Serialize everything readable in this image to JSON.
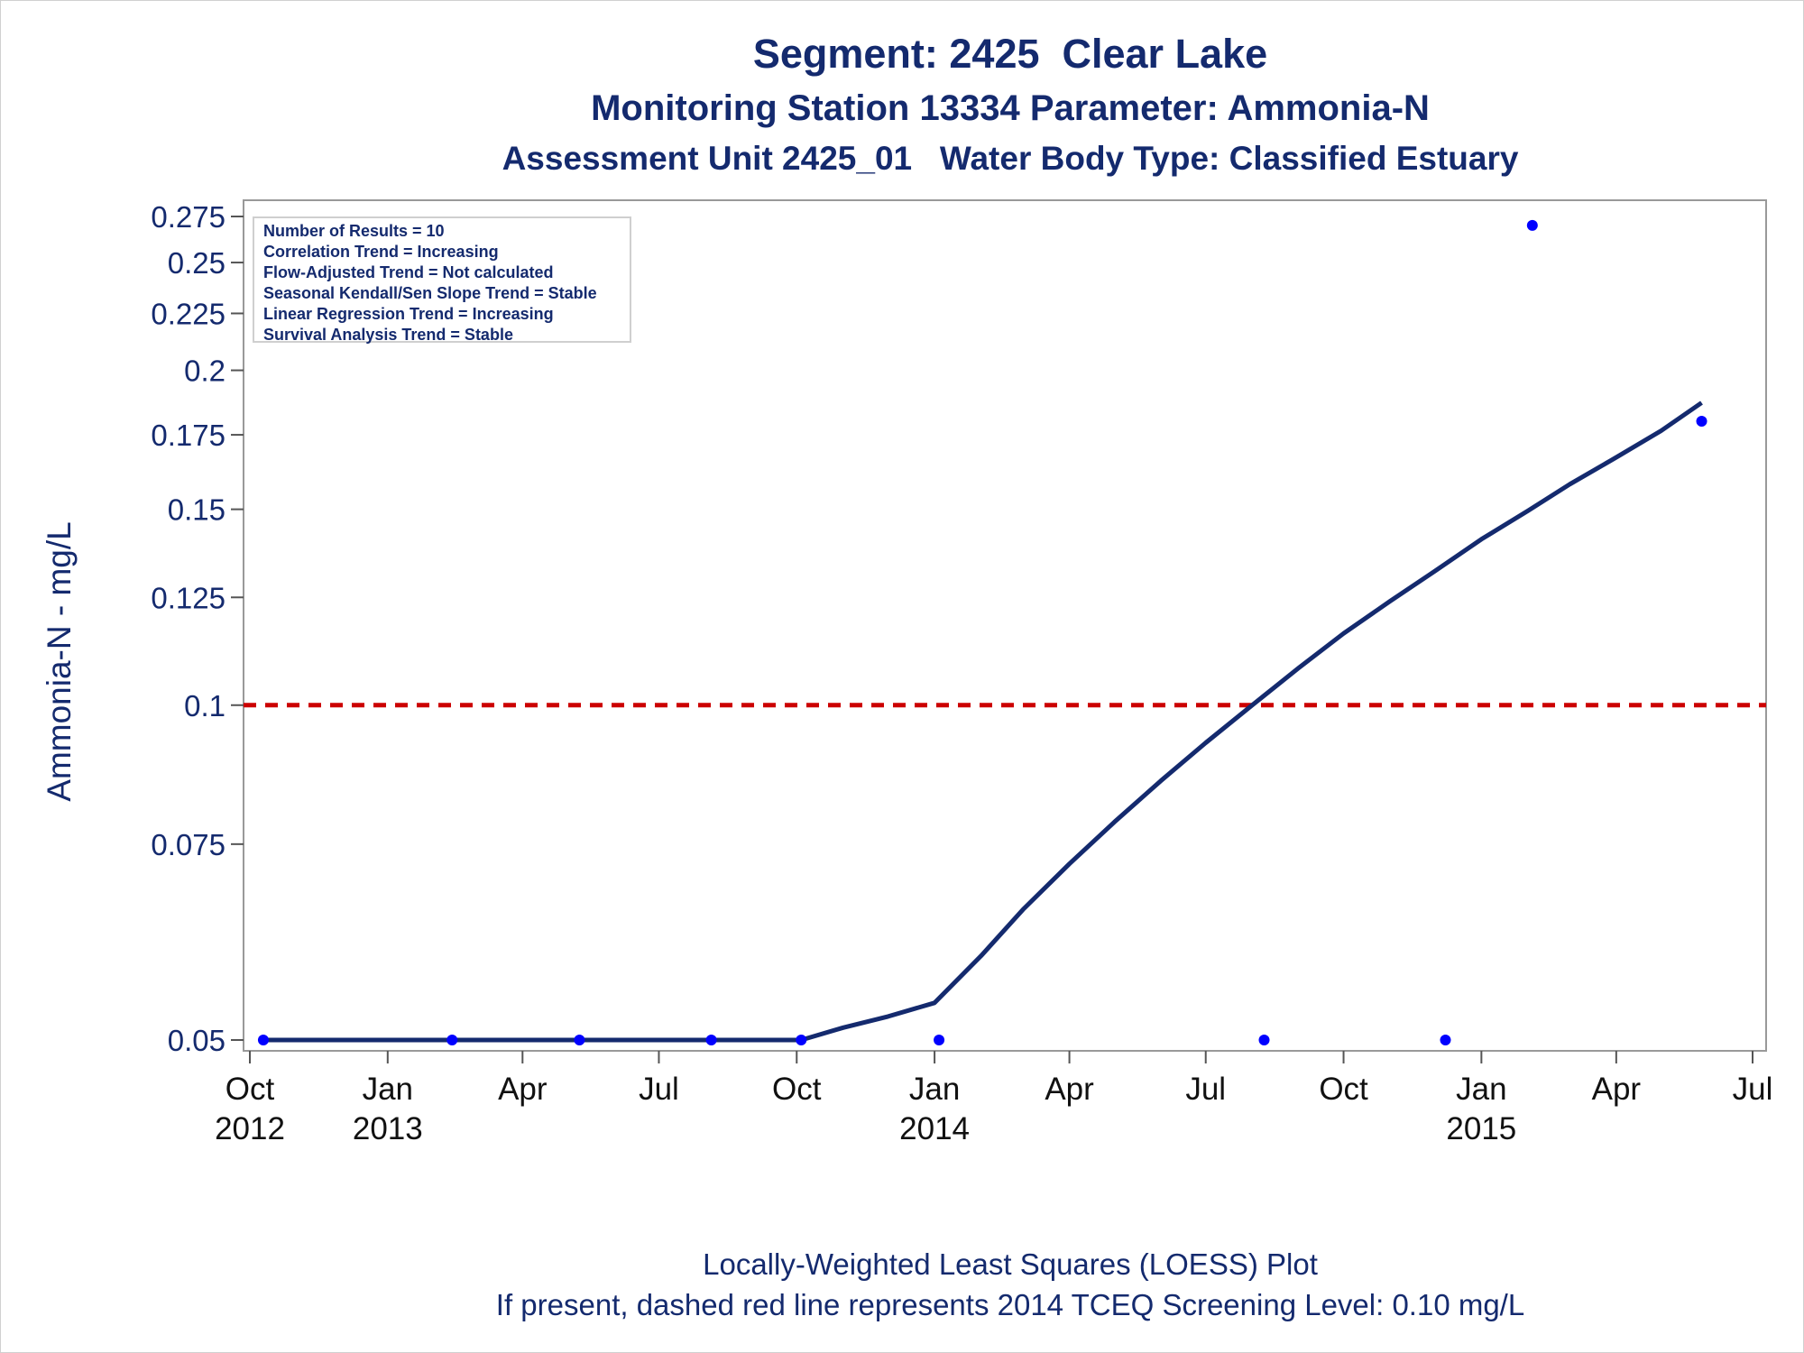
{
  "titles": {
    "line1": "Segment: 2425  Clear Lake",
    "line2": "Monitoring Station 13334 Parameter: Ammonia-N",
    "line3": "Assessment Unit 2425_01   Water Body Type: Classified Estuary"
  },
  "footnotes": {
    "line1": "Locally-Weighted Least Squares (LOESS) Plot",
    "line2": "If present, dashed red line represents 2014 TCEQ Screening Level: 0.10 mg/L"
  },
  "stats": [
    "Number of Results = 10",
    "Correlation Trend = Increasing",
    "Flow-Adjusted Trend = Not calculated",
    "Seasonal Kendall/Sen Slope Trend = Stable",
    "Linear Regression Trend = Increasing",
    "Survival Analysis Trend = Stable"
  ],
  "colors": {
    "text": "#142a6e",
    "loess_line": "#142a6e",
    "points": "#0000ff",
    "screening_line": "#cc0000",
    "frame": "#999999"
  },
  "chart_data": {
    "type": "scatter",
    "ylabel": "Ammonia-N - mg/L",
    "y_scale": "log",
    "ylim": [
      0.05,
      0.275
    ],
    "y_ticks": [
      0.05,
      0.075,
      0.1,
      0.125,
      0.15,
      0.175,
      0.2,
      0.225,
      0.25,
      0.275
    ],
    "y_tick_labels": [
      "0.05",
      "0.075",
      "0.1",
      "0.125",
      "0.15",
      "0.175",
      "0.2",
      "0.225",
      "0.25",
      "0.275"
    ],
    "xlim": [
      "2012-10-01",
      "2015-07-01"
    ],
    "x_ticks": [
      {
        "date": "2012-10-01",
        "month": "Oct",
        "year": "2012"
      },
      {
        "date": "2013-01-01",
        "month": "Jan",
        "year": "2013"
      },
      {
        "date": "2013-04-01",
        "month": "Apr",
        "year": ""
      },
      {
        "date": "2013-07-01",
        "month": "Jul",
        "year": ""
      },
      {
        "date": "2013-10-01",
        "month": "Oct",
        "year": ""
      },
      {
        "date": "2014-01-01",
        "month": "Jan",
        "year": "2014"
      },
      {
        "date": "2014-04-01",
        "month": "Apr",
        "year": ""
      },
      {
        "date": "2014-07-01",
        "month": "Jul",
        "year": ""
      },
      {
        "date": "2014-10-01",
        "month": "Oct",
        "year": ""
      },
      {
        "date": "2015-01-01",
        "month": "Jan",
        "year": "2015"
      },
      {
        "date": "2015-04-01",
        "month": "Apr",
        "year": ""
      },
      {
        "date": "2015-07-01",
        "month": "Jul",
        "year": ""
      }
    ],
    "points": [
      {
        "x": "2012-10-10",
        "y": 0.05
      },
      {
        "x": "2013-02-13",
        "y": 0.05
      },
      {
        "x": "2013-05-09",
        "y": 0.05
      },
      {
        "x": "2013-08-05",
        "y": 0.05
      },
      {
        "x": "2013-10-04",
        "y": 0.05
      },
      {
        "x": "2014-01-04",
        "y": 0.05
      },
      {
        "x": "2014-08-09",
        "y": 0.05
      },
      {
        "x": "2014-12-08",
        "y": 0.05
      },
      {
        "x": "2015-02-04",
        "y": 0.27
      },
      {
        "x": "2015-05-28",
        "y": 0.18
      }
    ],
    "loess": [
      {
        "x": "2012-10-10",
        "y": 0.05
      },
      {
        "x": "2013-10-04",
        "y": 0.05
      },
      {
        "x": "2013-11-01",
        "y": 0.0513
      },
      {
        "x": "2013-12-01",
        "y": 0.0525
      },
      {
        "x": "2014-01-01",
        "y": 0.054
      },
      {
        "x": "2014-02-01",
        "y": 0.0595
      },
      {
        "x": "2014-03-01",
        "y": 0.0655
      },
      {
        "x": "2014-04-01",
        "y": 0.072
      },
      {
        "x": "2014-05-01",
        "y": 0.0785
      },
      {
        "x": "2014-06-01",
        "y": 0.0855
      },
      {
        "x": "2014-07-01",
        "y": 0.0925
      },
      {
        "x": "2014-08-01",
        "y": 0.1
      },
      {
        "x": "2014-09-01",
        "y": 0.108
      },
      {
        "x": "2014-10-01",
        "y": 0.116
      },
      {
        "x": "2014-11-01",
        "y": 0.124
      },
      {
        "x": "2014-12-01",
        "y": 0.132
      },
      {
        "x": "2015-01-01",
        "y": 0.141
      },
      {
        "x": "2015-02-01",
        "y": 0.1495
      },
      {
        "x": "2015-03-01",
        "y": 0.158
      },
      {
        "x": "2015-04-01",
        "y": 0.167
      },
      {
        "x": "2015-05-01",
        "y": 0.1765
      },
      {
        "x": "2015-05-28",
        "y": 0.187
      }
    ],
    "reference_line": {
      "y": 0.1,
      "style": "dashed"
    }
  }
}
